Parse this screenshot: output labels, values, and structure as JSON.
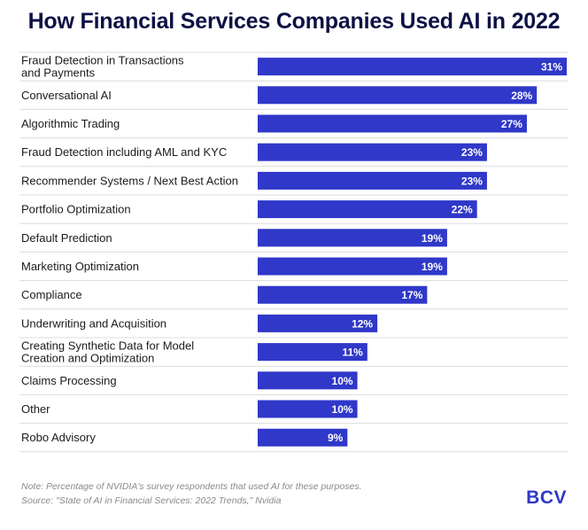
{
  "chart_data": {
    "type": "bar",
    "orientation": "horizontal",
    "title": "How Financial Services Companies Used AI in 2022",
    "categories": [
      [
        "Fraud Detection in Transactions",
        "and Payments"
      ],
      [
        "Conversational AI"
      ],
      [
        "Algorithmic Trading"
      ],
      [
        "Fraud Detection including AML and KYC"
      ],
      [
        "Recommender Systems / Next Best Action"
      ],
      [
        "Portfolio Optimization"
      ],
      [
        "Default Prediction"
      ],
      [
        "Marketing Optimization"
      ],
      [
        "Compliance"
      ],
      [
        "Underwriting and Acquisition"
      ],
      [
        "Creating Synthetic Data for Model",
        "Creation and Optimization"
      ],
      [
        "Claims Processing"
      ],
      [
        "Other"
      ],
      [
        "Robo Advisory"
      ]
    ],
    "values": [
      31,
      28,
      27,
      23,
      23,
      22,
      19,
      19,
      17,
      12,
      11,
      10,
      10,
      9
    ],
    "value_labels": [
      "31%",
      "28%",
      "27%",
      "23%",
      "23%",
      "22%",
      "19%",
      "19%",
      "17%",
      "12%",
      "11%",
      "10%",
      "10%",
      "9%"
    ],
    "unit": "%",
    "xlim": [
      0,
      31
    ],
    "xlabel": "",
    "ylabel": "",
    "grid": false,
    "colors": {
      "bar": "#2f38c8",
      "bar_label": "#ffffff",
      "category_label": "#1b1b1b",
      "divider": "#dcdcdc"
    }
  },
  "footer": {
    "note": "Note: Percentage of NVIDIA's survey respondents that used AI for these purposes.",
    "source": "Source: \"State of AI in Financial Services: 2022 Trends,\" Nvidia",
    "logo": "BCV"
  }
}
